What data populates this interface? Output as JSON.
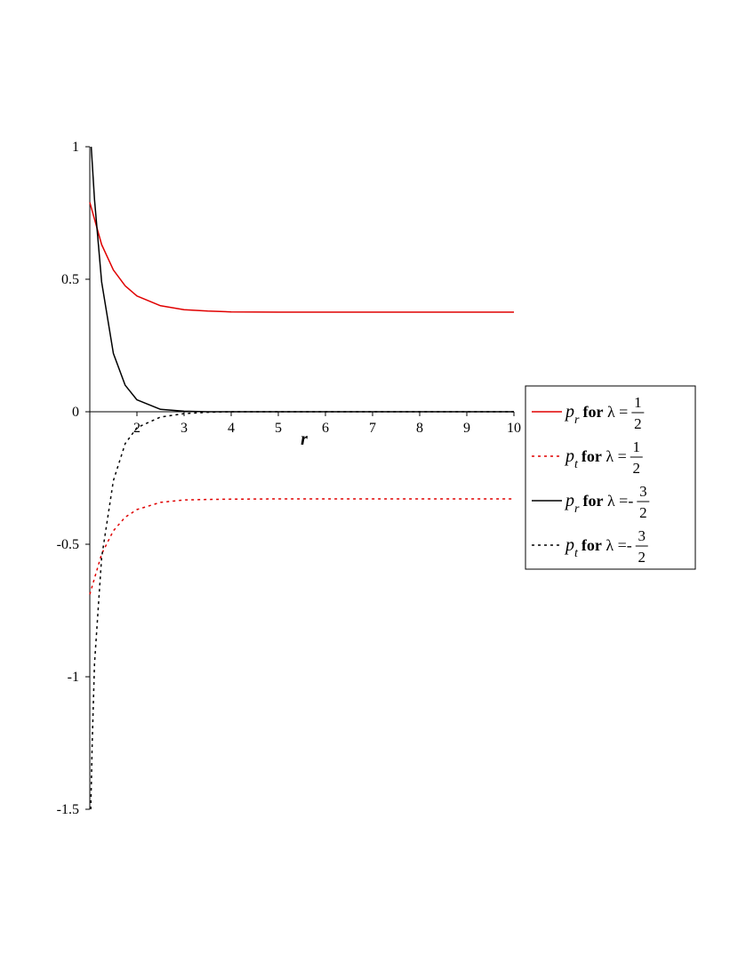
{
  "chart_data": {
    "type": "line",
    "xlabel": "r",
    "xlim": [
      1,
      10
    ],
    "xticks": [
      2,
      3,
      4,
      5,
      6,
      7,
      8,
      9,
      10
    ],
    "ylim": [
      -1.5,
      1
    ],
    "yticks": [
      1,
      0.5,
      0,
      -0.5,
      -1,
      -1.5
    ],
    "legend": "right",
    "series": [
      {
        "name": [
          "p",
          "r",
          "for λ =",
          "1",
          "2"
        ],
        "color": "#e00000",
        "dash": "solid",
        "x": [
          1,
          1.25,
          1.5,
          1.75,
          2,
          2.5,
          3,
          3.5,
          4,
          5,
          6,
          7,
          8,
          9,
          10
        ],
        "values": [
          0.79,
          0.631,
          0.535,
          0.475,
          0.437,
          0.4,
          0.385,
          0.38,
          0.377,
          0.376,
          0.376,
          0.376,
          0.376,
          0.376,
          0.376
        ]
      },
      {
        "name": [
          "p",
          "t",
          "for λ =",
          "1",
          "2"
        ],
        "color": "#e00000",
        "dash": "dotted",
        "x": [
          1,
          1.25,
          1.5,
          1.75,
          2,
          2.5,
          3,
          3.5,
          4,
          5,
          6,
          7,
          8,
          9,
          10
        ],
        "values": [
          -0.689,
          -0.537,
          -0.449,
          -0.398,
          -0.369,
          -0.342,
          -0.333,
          -0.331,
          -0.33,
          -0.329,
          -0.329,
          -0.329,
          -0.329,
          -0.329,
          -0.329
        ]
      },
      {
        "name": [
          "p",
          "r",
          "for λ =-",
          "3",
          "2"
        ],
        "color": "#000000",
        "dash": "solid",
        "x": [
          1.03,
          1.1,
          1.25,
          1.5,
          1.75,
          2,
          2.5,
          3,
          3.5,
          4,
          5,
          6,
          7,
          8,
          9,
          10
        ],
        "values": [
          1.0,
          0.8,
          0.49,
          0.22,
          0.1,
          0.045,
          0.009,
          0.002,
          0,
          0,
          0,
          0,
          0,
          0,
          0,
          0
        ]
      },
      {
        "name": [
          "p",
          "t",
          "for λ =-",
          "3",
          "2"
        ],
        "color": "#000000",
        "dash": "dotted",
        "x": [
          1.02,
          1.05,
          1.1,
          1.25,
          1.5,
          1.75,
          2,
          2.5,
          3,
          3.5,
          4,
          5,
          6,
          7,
          8,
          9,
          10
        ],
        "values": [
          -1.5,
          -1.25,
          -0.95,
          -0.55,
          -0.26,
          -0.12,
          -0.06,
          -0.02,
          -0.007,
          -0.002,
          0,
          0,
          0,
          0,
          0,
          0,
          0
        ]
      }
    ]
  }
}
